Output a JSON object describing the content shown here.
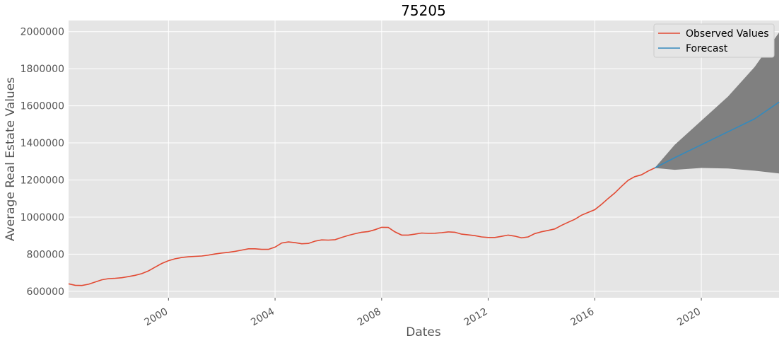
{
  "chart_data": {
    "type": "line",
    "title": "75205",
    "xlabel": "Dates",
    "ylabel": "Average Real Estate Values",
    "x_axis": {
      "type": "date",
      "range": [
        "1996-04",
        "2022-12"
      ],
      "ticks": [
        "2000",
        "2004",
        "2008",
        "2012",
        "2016",
        "2020"
      ]
    },
    "y_axis": {
      "range": [
        565000,
        2060000
      ],
      "ticks": [
        600000,
        800000,
        1000000,
        1200000,
        1400000,
        1600000,
        1800000,
        2000000
      ]
    },
    "grid": true,
    "legend": {
      "placement": "top-right",
      "entries": [
        "Observed Values",
        "Forecast"
      ]
    },
    "colors": {
      "observed": "#e24a33",
      "forecast": "#348abd",
      "confidence": "#808080",
      "plot_bg": "#e5e5e5",
      "grid": "#ffffff"
    },
    "series": [
      {
        "name": "Observed Values",
        "x": [
          "1996-04",
          "1996-07",
          "1996-10",
          "1997-01",
          "1997-04",
          "1997-07",
          "1997-10",
          "1998-01",
          "1998-04",
          "1998-07",
          "1998-10",
          "1999-01",
          "1999-04",
          "1999-07",
          "1999-10",
          "2000-01",
          "2000-04",
          "2000-07",
          "2000-10",
          "2001-01",
          "2001-04",
          "2001-07",
          "2001-10",
          "2002-01",
          "2002-04",
          "2002-07",
          "2002-10",
          "2003-01",
          "2003-04",
          "2003-07",
          "2003-10",
          "2004-01",
          "2004-04",
          "2004-07",
          "2004-10",
          "2005-01",
          "2005-04",
          "2005-07",
          "2005-10",
          "2006-01",
          "2006-04",
          "2006-07",
          "2006-10",
          "2007-01",
          "2007-04",
          "2007-07",
          "2007-10",
          "2008-01",
          "2008-04",
          "2008-07",
          "2008-10",
          "2009-01",
          "2009-04",
          "2009-07",
          "2009-10",
          "2010-01",
          "2010-04",
          "2010-07",
          "2010-10",
          "2011-01",
          "2011-04",
          "2011-07",
          "2011-10",
          "2012-01",
          "2012-04",
          "2012-07",
          "2012-10",
          "2013-01",
          "2013-04",
          "2013-07",
          "2013-10",
          "2014-01",
          "2014-04",
          "2014-07",
          "2014-10",
          "2015-01",
          "2015-04",
          "2015-07",
          "2015-10",
          "2016-01",
          "2016-04",
          "2016-07",
          "2016-10",
          "2017-01",
          "2017-04",
          "2017-07",
          "2017-10",
          "2018-01",
          "2018-04"
        ],
        "values": [
          640000,
          632000,
          631000,
          638000,
          650000,
          662000,
          668000,
          670000,
          673000,
          679000,
          686000,
          695000,
          710000,
          730000,
          750000,
          765000,
          775000,
          782000,
          786000,
          788000,
          790000,
          795000,
          801000,
          806000,
          810000,
          815000,
          822000,
          829000,
          829000,
          826000,
          826000,
          838000,
          860000,
          866000,
          862000,
          856000,
          858000,
          870000,
          877000,
          876000,
          878000,
          890000,
          901000,
          910000,
          918000,
          922000,
          932000,
          945000,
          944000,
          920000,
          903000,
          903000,
          908000,
          914000,
          912000,
          913000,
          916000,
          920000,
          918000,
          908000,
          904000,
          900000,
          893000,
          890000,
          890000,
          896000,
          903000,
          897000,
          888000,
          893000,
          911000,
          921000,
          928000,
          936000,
          955000,
          972000,
          988000,
          1010000,
          1025000,
          1040000,
          1068000,
          1100000,
          1130000,
          1165000,
          1198000,
          1218000,
          1228000,
          1248000,
          1265000
        ]
      },
      {
        "name": "Forecast",
        "x": [
          "2018-04",
          "2019-01",
          "2020-01",
          "2021-01",
          "2022-01",
          "2022-12"
        ],
        "values": [
          1265000,
          1320000,
          1390000,
          1460000,
          1530000,
          1620000
        ],
        "lower": [
          1265000,
          1255000,
          1265000,
          1262000,
          1250000,
          1235000
        ],
        "upper": [
          1265000,
          1390000,
          1520000,
          1650000,
          1810000,
          1995000
        ]
      }
    ]
  }
}
